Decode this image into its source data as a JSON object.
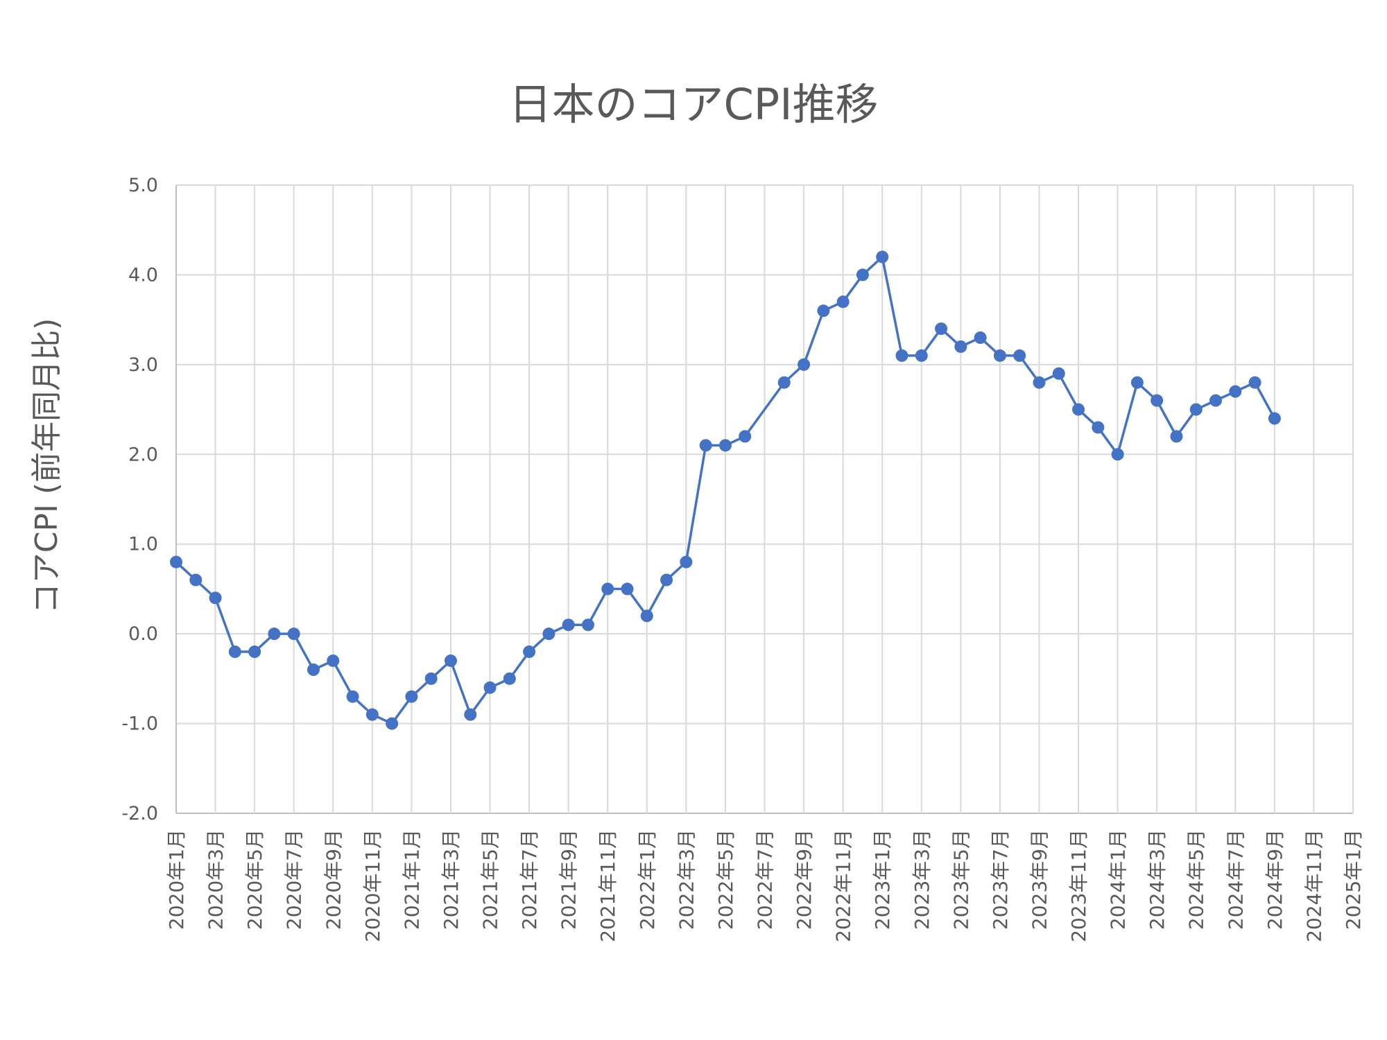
{
  "chart_data": {
    "type": "line",
    "title": "日本のコアCPI推移",
    "xlabel": "",
    "ylabel": "コアCPI (前年同月比)",
    "ylim": [
      -2.0,
      5.0
    ],
    "yticks": [
      "5.0",
      "4.0",
      "3.0",
      "2.0",
      "1.0",
      "0.0",
      "-1.0",
      "-2.0"
    ],
    "ytick_values": [
      5,
      4,
      3,
      2,
      1,
      0,
      -1,
      -2
    ],
    "grid": true,
    "legend": "none",
    "xtick_labels": [
      "2020年1月",
      "2020年3月",
      "2020年5月",
      "2020年7月",
      "2020年9月",
      "2020年11月",
      "2021年1月",
      "2021年3月",
      "2021年5月",
      "2021年7月",
      "2021年9月",
      "2021年11月",
      "2022年1月",
      "2022年3月",
      "2022年5月",
      "2022年7月",
      "2022年9月",
      "2022年11月",
      "2023年1月",
      "2023年3月",
      "2023年5月",
      "2023年7月",
      "2023年9月",
      "2023年11月",
      "2024年1月",
      "2024年3月",
      "2024年5月",
      "2024年7月",
      "2024年9月",
      "2024年11月",
      "2025年1月"
    ],
    "x": [
      "2020-01",
      "2020-02",
      "2020-03",
      "2020-04",
      "2020-05",
      "2020-06",
      "2020-07",
      "2020-08",
      "2020-09",
      "2020-10",
      "2020-11",
      "2020-12",
      "2021-01",
      "2021-02",
      "2021-03",
      "2021-04",
      "2021-05",
      "2021-06",
      "2021-07",
      "2021-08",
      "2021-09",
      "2021-10",
      "2021-11",
      "2021-12",
      "2022-01",
      "2022-02",
      "2022-03",
      "2022-04",
      "2022-05",
      "2022-06",
      "2022-07",
      "2022-08",
      "2022-09",
      "2022-10",
      "2022-11",
      "2022-12",
      "2023-01",
      "2023-02",
      "2023-03",
      "2023-04",
      "2023-05",
      "2023-06",
      "2023-07",
      "2023-08",
      "2023-09",
      "2023-10",
      "2023-11",
      "2023-12",
      "2024-01",
      "2024-02",
      "2024-03",
      "2024-04",
      "2024-05",
      "2024-06",
      "2024-07",
      "2024-08",
      "2024-09"
    ],
    "series": [
      {
        "name": "コアCPI",
        "color": "#4472C4",
        "values": [
          0.8,
          0.6,
          0.4,
          -0.2,
          -0.2,
          0.0,
          0.0,
          -0.4,
          -0.3,
          -0.7,
          -0.9,
          -1.0,
          -0.7,
          -0.5,
          -0.3,
          -0.9,
          -0.6,
          -0.5,
          -0.2,
          0.0,
          0.1,
          0.1,
          0.5,
          0.5,
          0.2,
          0.6,
          0.8,
          2.1,
          2.1,
          2.2,
          null,
          2.8,
          3.0,
          3.6,
          3.7,
          4.0,
          4.2,
          3.1,
          3.1,
          3.4,
          3.2,
          3.3,
          3.1,
          3.1,
          2.8,
          2.9,
          2.5,
          2.3,
          2.0,
          2.8,
          2.6,
          2.2,
          2.5,
          2.6,
          2.7,
          2.8,
          2.4
        ]
      }
    ],
    "x_months_total": 60
  }
}
